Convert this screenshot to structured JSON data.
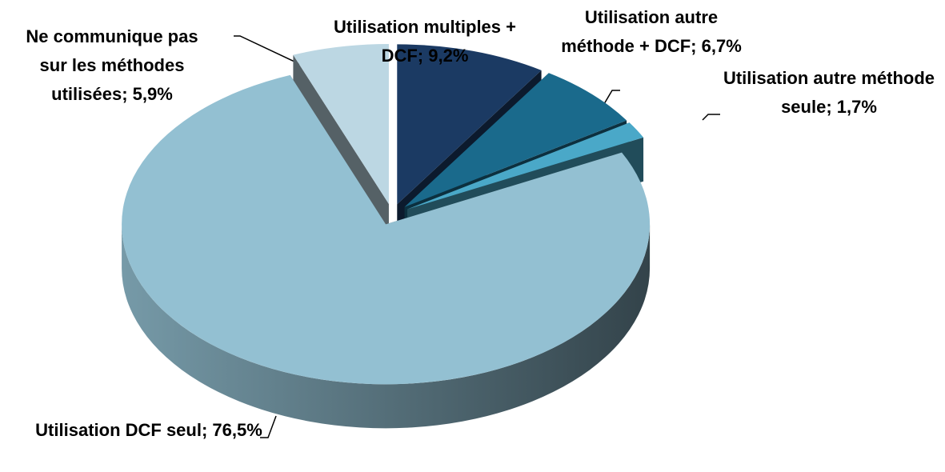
{
  "chart_data": {
    "type": "pie",
    "categories": [
      "Utilisation multiples + DCF",
      "Utilisation autre méthode + DCF",
      "Utilisation autre méthode seule",
      "Utilisation DCF seul",
      "Ne communique pas sur les méthodes utilisées"
    ],
    "values": [
      9.2,
      6.7,
      1.7,
      76.5,
      5.9
    ],
    "value_labels": [
      "9,2%",
      "6,7%",
      "1,7%",
      "76,5%",
      "5,9%"
    ],
    "label_separator": ";",
    "colors": [
      "#1b3a63",
      "#1a6a8c",
      "#4aa8c8",
      "#93c0d2",
      "#bcd7e3"
    ]
  }
}
